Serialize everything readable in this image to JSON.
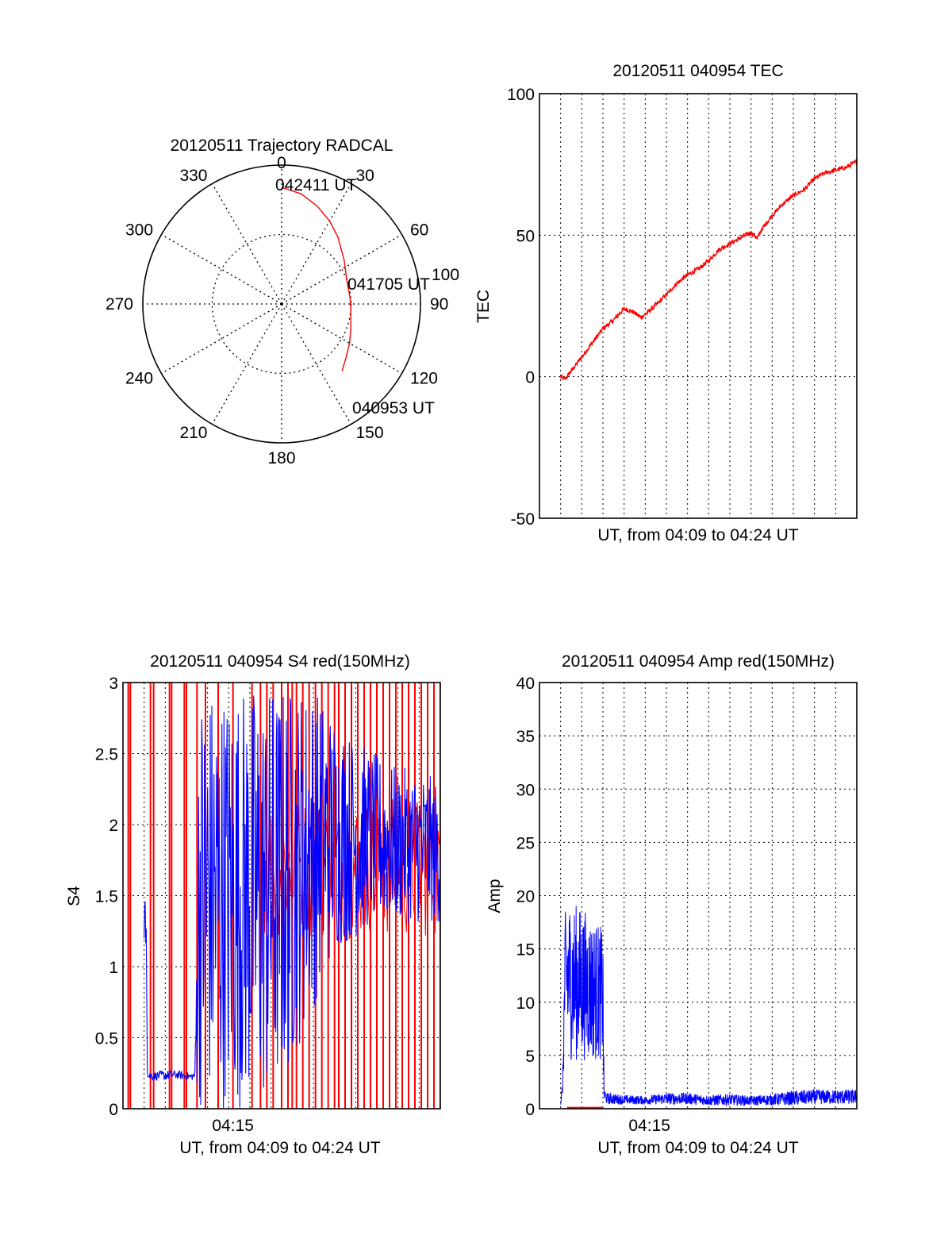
{
  "colors": {
    "red": "#ff0000",
    "blue": "#0000ff",
    "axis": "#000000",
    "grid": "#000000"
  },
  "chart_data": [
    {
      "type": "polar",
      "title": "20120511 Trajectory RADCAL",
      "angle_ticks": [
        "0",
        "30",
        "60",
        "90",
        "120",
        "150",
        "180",
        "210",
        "240",
        "270",
        "300",
        "330"
      ],
      "angle_values": [
        0,
        30,
        60,
        90,
        120,
        150,
        180,
        210,
        240,
        270,
        300,
        330
      ],
      "radial_ticks": [
        "100"
      ],
      "rmax": 100,
      "rings": [
        50,
        100
      ],
      "trajectory": {
        "azimuth": [
          0,
          10,
          20,
          30,
          40,
          55,
          70,
          85,
          95,
          110,
          120,
          130,
          138
        ],
        "zenith": [
          84,
          80.5,
          75,
          69,
          63,
          55,
          50,
          49.5,
          50,
          53,
          56.5,
          60.5,
          65
        ]
      },
      "annotations": [
        "042411 UT",
        "041705 UT",
        "040953 UT"
      ]
    },
    {
      "type": "line",
      "title": "20120511 040954 TEC",
      "xlabel": "UT, from 04:09 to 04:24 UT",
      "ylabel": "TEC",
      "xlim": [
        0,
        15
      ],
      "ylim": [
        -50,
        100
      ],
      "yticks": [
        "-50",
        "0",
        "50",
        "100"
      ],
      "grid": true,
      "series": [
        {
          "color": "#ff0000",
          "x": [
            1.0,
            1.2,
            1.5,
            2.0,
            2.5,
            3.0,
            3.5,
            4.0,
            4.4,
            4.6,
            4.8,
            5.0,
            5.3,
            5.6,
            6.0,
            6.5,
            7.0,
            7.5,
            8.0,
            8.5,
            9.0,
            9.5,
            10.0,
            10.3,
            10.5,
            11.0,
            11.5,
            12.0,
            12.5,
            13.0,
            13.5,
            14.0,
            14.5,
            15.0
          ],
          "y": [
            0,
            -1,
            2,
            7,
            12,
            17,
            20,
            24,
            23,
            22,
            21,
            22,
            24,
            26,
            29,
            33,
            36,
            38,
            41,
            45,
            47,
            49,
            51,
            49,
            52,
            57,
            61,
            64,
            66,
            70,
            72,
            73,
            74,
            76
          ]
        }
      ]
    },
    {
      "type": "line",
      "title": "20120511 040954 S4 red(150MHz)",
      "xlabel": "UT, from 04:09 to 04:24 UT",
      "ylabel": "S4",
      "xlim": [
        0,
        15
      ],
      "ylim": [
        0,
        3
      ],
      "xticks": [
        "04:15"
      ],
      "xtick_values": [
        5.2
      ],
      "yticks": [
        "0",
        "0.5",
        "1",
        "1.5",
        "2",
        "2.5",
        "3"
      ],
      "grid": true,
      "series": [
        {
          "color": "#0000ff",
          "x": [
            1.0,
            1.05,
            1.1,
            1.15,
            1.2,
            1.3,
            1.5,
            2.0,
            2.5,
            3.0,
            3.2,
            3.4,
            3.6,
            4.0,
            5.0,
            6.0,
            7.0,
            8.0,
            9.0,
            10.0,
            11.0,
            12.0,
            13.0,
            14.0,
            15.0
          ],
          "y": [
            1.2,
            2.0,
            1.4,
            0.6,
            0.22,
            0.25,
            0.23,
            0.23,
            0.24,
            0.23,
            0.22,
            0.25,
            2.4,
            2.1,
            2.2,
            2.2,
            2.1,
            2.0,
            1.9,
            1.9,
            1.8,
            1.8,
            1.8,
            1.8,
            1.8
          ],
          "y_min": [
            1.2,
            1.1,
            1.2,
            0.2,
            0.2,
            0.2,
            0.2,
            0.2,
            0.21,
            0.2,
            0.2,
            0.2,
            0.0,
            0.0,
            0.0,
            0.0,
            0.0,
            0.3,
            0.7,
            1.1,
            1.2,
            1.3,
            1.3,
            1.3,
            1.3
          ],
          "y_max": [
            1.2,
            2.0,
            1.8,
            0.6,
            0.25,
            0.27,
            0.26,
            0.27,
            0.27,
            0.26,
            0.25,
            0.27,
            3.0,
            3.0,
            3.0,
            3.0,
            3.0,
            3.0,
            3.0,
            2.8,
            2.6,
            2.5,
            2.4,
            2.4,
            2.3
          ]
        },
        {
          "color": "#ff0000",
          "note_spikes": "vertical full-height spikes to 3",
          "spike_x": [
            0.25,
            0.35,
            1.3,
            1.45,
            2.2,
            2.3,
            2.9,
            3.0,
            3.5,
            3.9,
            4.5,
            5.2,
            6.1,
            6.5,
            6.8,
            7.1,
            7.5,
            7.8,
            8.0,
            8.2,
            8.5,
            8.8,
            9.1,
            9.4,
            9.7,
            10.0,
            10.2,
            10.5,
            10.8,
            11.1,
            11.4,
            11.7,
            12.0,
            12.3,
            12.6,
            12.9,
            13.2,
            13.5,
            13.8,
            14.1,
            14.4,
            14.7,
            15.0
          ]
        }
      ]
    },
    {
      "type": "line",
      "title": "20120511 040954 Amp red(150MHz)",
      "xlabel": "UT, from 04:09 to 04:24 UT",
      "ylabel": "Amp",
      "xlim": [
        0,
        15
      ],
      "ylim": [
        0,
        40
      ],
      "xticks": [
        "04:15"
      ],
      "xtick_values": [
        5.2
      ],
      "yticks": [
        "0",
        "5",
        "10",
        "15",
        "20",
        "25",
        "30",
        "35",
        "40"
      ],
      "grid": true,
      "series": [
        {
          "color": "#0000ff",
          "x": [
            1.0,
            1.1,
            1.2,
            1.3,
            1.5,
            2.0,
            2.5,
            3.0,
            3.05,
            3.2,
            4.0,
            5.0,
            6.0,
            7.0,
            8.0,
            9.0,
            10.0,
            11.0,
            12.0,
            13.0,
            14.0,
            15.0
          ],
          "y_min": [
            0.3,
            1.5,
            5.5,
            5.0,
            4.5,
            4.5,
            4.5,
            4.5,
            0.6,
            0.4,
            0.4,
            0.4,
            0.4,
            0.4,
            0.3,
            0.3,
            0.3,
            0.3,
            0.3,
            0.4,
            0.4,
            0.4
          ],
          "y_max": [
            0.5,
            3.0,
            18.0,
            20.0,
            19.5,
            19.0,
            18.0,
            17.0,
            2.0,
            1.5,
            1.3,
            1.2,
            1.5,
            1.5,
            1.3,
            1.4,
            1.2,
            1.4,
            1.7,
            1.8,
            1.8,
            1.8
          ]
        },
        {
          "color": "#ff0000",
          "x": [
            1.3,
            3.0
          ],
          "y": [
            0.1,
            0.1
          ]
        }
      ]
    }
  ]
}
